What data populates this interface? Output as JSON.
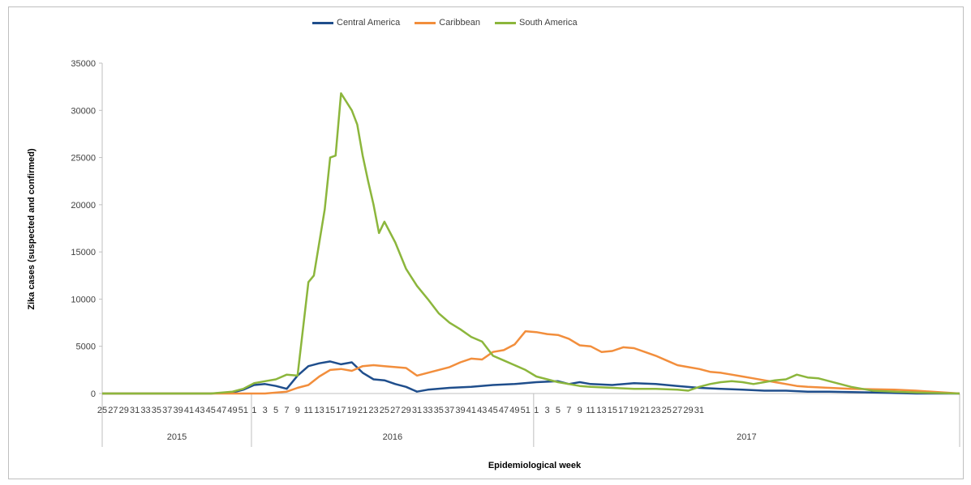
{
  "chart_data": {
    "type": "line",
    "title": "",
    "xlabel": "Epidemiological week",
    "ylabel": "Zika cases (suspected and confirmed)",
    "ylim": [
      0,
      35000
    ],
    "yticks": [
      "0",
      "5000",
      "10000",
      "15000",
      "20000",
      "25000",
      "30000",
      "35000"
    ],
    "grid": false,
    "legend_position": "top",
    "years": [
      {
        "label": "2015",
        "start": 25,
        "end": 52
      },
      {
        "label": "2016",
        "start": 1,
        "end": 52
      },
      {
        "label": "2017",
        "start": 1,
        "end": 31
      }
    ],
    "xtick_labels": [
      "25",
      "27",
      "29",
      "31",
      "33",
      "35",
      "37",
      "39",
      "41",
      "43",
      "45",
      "47",
      "49",
      "51",
      "1",
      "3",
      "5",
      "7",
      "9",
      "11",
      "13",
      "15",
      "17",
      "19",
      "21",
      "23",
      "25",
      "27",
      "29",
      "31",
      "33",
      "35",
      "37",
      "39",
      "41",
      "43",
      "45",
      "47",
      "49",
      "51",
      "1",
      "3",
      "5",
      "7",
      "9",
      "11",
      "13",
      "15",
      "17",
      "19",
      "21",
      "23",
      "25",
      "27",
      "29",
      "31"
    ],
    "series": [
      {
        "name": "Central America",
        "color": "#1f4e8c",
        "points": [
          [
            0,
            0
          ],
          [
            20,
            0
          ],
          [
            24,
            100
          ],
          [
            26,
            400
          ],
          [
            28,
            900
          ],
          [
            30,
            1000
          ],
          [
            32,
            800
          ],
          [
            34,
            500
          ],
          [
            36,
            1900
          ],
          [
            38,
            2900
          ],
          [
            40,
            3200
          ],
          [
            42,
            3400
          ],
          [
            44,
            3100
          ],
          [
            46,
            3300
          ],
          [
            48,
            2200
          ],
          [
            50,
            1500
          ],
          [
            52,
            1400
          ],
          [
            54,
            1000
          ],
          [
            56,
            700
          ],
          [
            58,
            200
          ],
          [
            60,
            400
          ],
          [
            64,
            600
          ],
          [
            68,
            700
          ],
          [
            72,
            900
          ],
          [
            76,
            1000
          ],
          [
            80,
            1200
          ],
          [
            84,
            1300
          ],
          [
            86,
            1000
          ],
          [
            88,
            1200
          ],
          [
            90,
            1000
          ],
          [
            94,
            900
          ],
          [
            98,
            1100
          ],
          [
            102,
            1000
          ],
          [
            106,
            800
          ],
          [
            110,
            600
          ],
          [
            114,
            500
          ],
          [
            118,
            400
          ],
          [
            122,
            300
          ],
          [
            126,
            300
          ],
          [
            130,
            200
          ],
          [
            134,
            200
          ],
          [
            138,
            150
          ],
          [
            142,
            100
          ],
          [
            146,
            50
          ],
          [
            150,
            0
          ],
          [
            158,
            0
          ]
        ]
      },
      {
        "name": "Caribbean",
        "color": "#f28e3c",
        "points": [
          [
            0,
            0
          ],
          [
            30,
            0
          ],
          [
            34,
            200
          ],
          [
            36,
            600
          ],
          [
            38,
            900
          ],
          [
            40,
            1800
          ],
          [
            42,
            2500
          ],
          [
            44,
            2600
          ],
          [
            46,
            2400
          ],
          [
            48,
            2900
          ],
          [
            50,
            3000
          ],
          [
            52,
            2900
          ],
          [
            54,
            2800
          ],
          [
            56,
            2700
          ],
          [
            58,
            1900
          ],
          [
            60,
            2200
          ],
          [
            62,
            2500
          ],
          [
            64,
            2800
          ],
          [
            66,
            3300
          ],
          [
            68,
            3700
          ],
          [
            70,
            3600
          ],
          [
            72,
            4400
          ],
          [
            74,
            4600
          ],
          [
            76,
            5200
          ],
          [
            78,
            6600
          ],
          [
            80,
            6500
          ],
          [
            82,
            6300
          ],
          [
            84,
            6200
          ],
          [
            86,
            5800
          ],
          [
            88,
            5100
          ],
          [
            90,
            5000
          ],
          [
            92,
            4400
          ],
          [
            94,
            4500
          ],
          [
            96,
            4900
          ],
          [
            98,
            4800
          ],
          [
            100,
            4400
          ],
          [
            102,
            4000
          ],
          [
            104,
            3500
          ],
          [
            106,
            3000
          ],
          [
            108,
            2800
          ],
          [
            110,
            2600
          ],
          [
            112,
            2300
          ],
          [
            114,
            2200
          ],
          [
            116,
            2000
          ],
          [
            118,
            1800
          ],
          [
            120,
            1600
          ],
          [
            122,
            1400
          ],
          [
            124,
            1200
          ],
          [
            126,
            1000
          ],
          [
            128,
            800
          ],
          [
            130,
            700
          ],
          [
            134,
            600
          ],
          [
            138,
            500
          ],
          [
            142,
            450
          ],
          [
            146,
            400
          ],
          [
            150,
            300
          ],
          [
            154,
            150
          ],
          [
            158,
            0
          ]
        ]
      },
      {
        "name": "South America",
        "color": "#8cb63c",
        "points": [
          [
            0,
            0
          ],
          [
            20,
            0
          ],
          [
            24,
            200
          ],
          [
            26,
            500
          ],
          [
            28,
            1100
          ],
          [
            30,
            1300
          ],
          [
            32,
            1500
          ],
          [
            34,
            2000
          ],
          [
            36,
            1900
          ],
          [
            38,
            11800
          ],
          [
            39,
            12500
          ],
          [
            40,
            16000
          ],
          [
            41,
            19500
          ],
          [
            42,
            25000
          ],
          [
            43,
            25200
          ],
          [
            44,
            31800
          ],
          [
            46,
            30000
          ],
          [
            47,
            28500
          ],
          [
            48,
            25200
          ],
          [
            49,
            22500
          ],
          [
            50,
            20000
          ],
          [
            51,
            17000
          ],
          [
            52,
            18200
          ],
          [
            54,
            16000
          ],
          [
            56,
            13200
          ],
          [
            58,
            11400
          ],
          [
            60,
            10000
          ],
          [
            62,
            8500
          ],
          [
            64,
            7500
          ],
          [
            66,
            6800
          ],
          [
            68,
            6000
          ],
          [
            70,
            5500
          ],
          [
            72,
            4000
          ],
          [
            74,
            3500
          ],
          [
            76,
            3000
          ],
          [
            78,
            2500
          ],
          [
            80,
            1800
          ],
          [
            82,
            1500
          ],
          [
            84,
            1200
          ],
          [
            86,
            1000
          ],
          [
            88,
            800
          ],
          [
            90,
            700
          ],
          [
            94,
            600
          ],
          [
            98,
            500
          ],
          [
            102,
            500
          ],
          [
            106,
            400
          ],
          [
            108,
            300
          ],
          [
            110,
            700
          ],
          [
            112,
            1000
          ],
          [
            114,
            1200
          ],
          [
            116,
            1300
          ],
          [
            118,
            1200
          ],
          [
            120,
            1000
          ],
          [
            122,
            1200
          ],
          [
            124,
            1400
          ],
          [
            126,
            1500
          ],
          [
            128,
            2000
          ],
          [
            130,
            1700
          ],
          [
            132,
            1600
          ],
          [
            134,
            1300
          ],
          [
            136,
            1000
          ],
          [
            138,
            700
          ],
          [
            140,
            500
          ],
          [
            142,
            300
          ],
          [
            146,
            200
          ],
          [
            150,
            100
          ],
          [
            158,
            0
          ]
        ]
      }
    ]
  }
}
